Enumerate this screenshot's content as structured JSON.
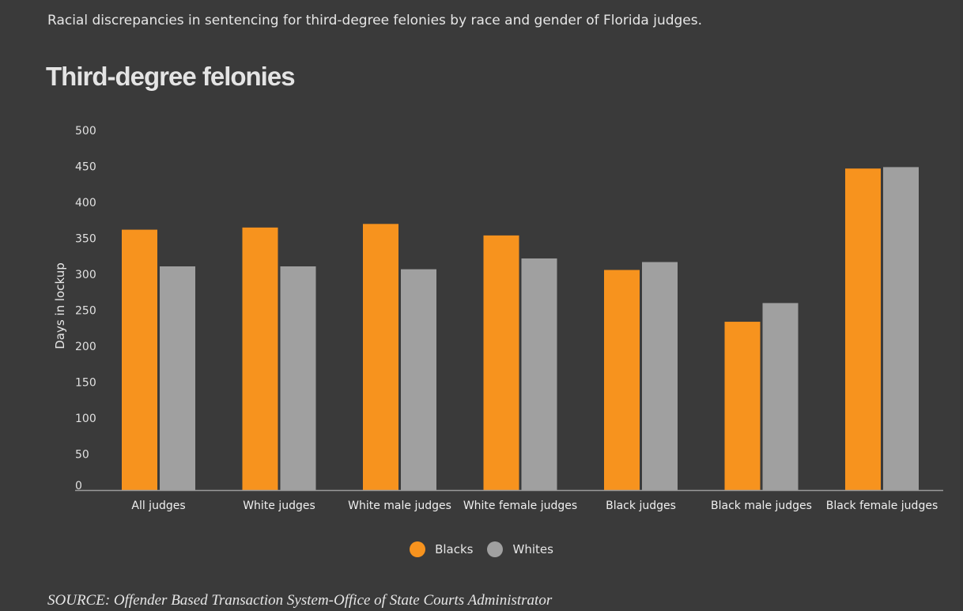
{
  "header": {
    "subtitle": "Racial discrepancies in sentencing for third-degree felonies by race and gender of Florida judges."
  },
  "footer": {
    "source": "SOURCE: Offender Based Transaction System-Office of State Courts Administrator"
  },
  "chart_data": {
    "type": "bar",
    "title": "Third-degree felonies",
    "xlabel": "",
    "ylabel": "Days in lockup",
    "ylim": [
      0,
      500
    ],
    "yticks": [
      0,
      50,
      100,
      150,
      200,
      250,
      300,
      350,
      400,
      450,
      500
    ],
    "grid": false,
    "legend_position": "bottom-center",
    "categories": [
      "All judges",
      "White judges",
      "White male judges",
      "White female judges",
      "Black judges",
      "Black male judges",
      "Black female judges"
    ],
    "series": [
      {
        "name": "Blacks",
        "color": "#f7931e",
        "values": [
          362,
          365,
          370,
          354,
          306,
          234,
          447
        ]
      },
      {
        "name": "Whites",
        "color": "#a0a0a0",
        "values": [
          311,
          311,
          307,
          322,
          317,
          260,
          449
        ]
      }
    ]
  }
}
